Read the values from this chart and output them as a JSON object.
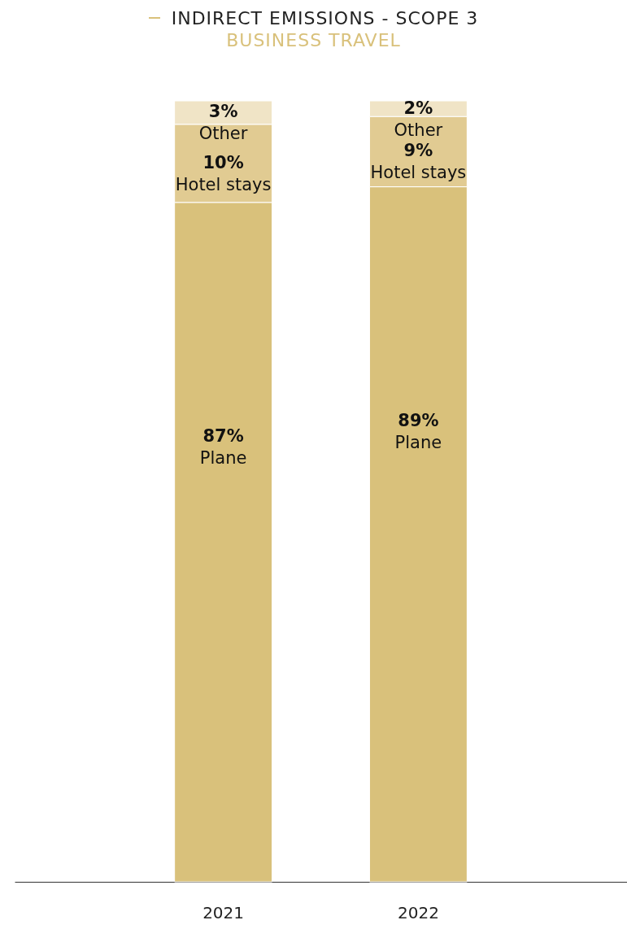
{
  "chart_data": {
    "type": "bar",
    "stacked": true,
    "title": "INDIRECT EMISSIONS - SCOPE 3",
    "subtitle": "BUSINESS TRAVEL",
    "categories": [
      "2021",
      "2022"
    ],
    "series": [
      {
        "name": "Plane",
        "color": "#d9c17b",
        "values": [
          87,
          89
        ],
        "value_labels": [
          "87%",
          "89%"
        ]
      },
      {
        "name": "Hotel stays",
        "color": "#e1cb92",
        "values": [
          10,
          9
        ],
        "value_labels": [
          "10%",
          "9%"
        ]
      },
      {
        "name": "Other",
        "color": "#f0e4c6",
        "values": [
          3,
          2
        ],
        "value_labels": [
          "3%",
          "2%"
        ]
      }
    ]
  }
}
